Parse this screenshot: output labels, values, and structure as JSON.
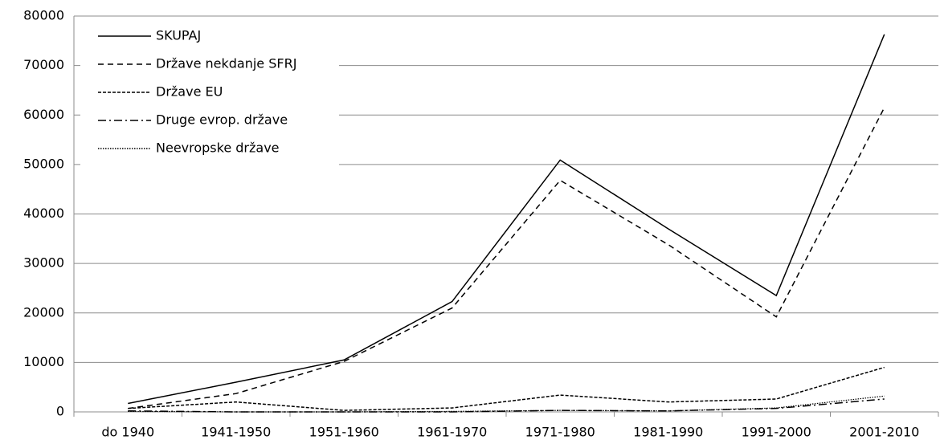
{
  "chart_data": {
    "type": "line",
    "categories": [
      "do 1940",
      "1941-1950",
      "1951-1960",
      "1961-1970",
      "1971-1980",
      "1981-1990",
      "1991-2000",
      "2001-2010"
    ],
    "series": [
      {
        "name": "SKUPAJ",
        "color": "#000000",
        "dash": "solid",
        "values": [
          1700,
          6000,
          10500,
          22300,
          50900,
          37000,
          23500,
          76300
        ]
      },
      {
        "name": "Države nekdanje  SFRJ",
        "color": "#000000",
        "dash": "dashed",
        "values": [
          700,
          3700,
          10200,
          21000,
          46800,
          33800,
          19200,
          61500
        ]
      },
      {
        "name": "Države EU",
        "color": "#000000",
        "dash": "short-dashed",
        "values": [
          700,
          2000,
          300,
          800,
          3400,
          2000,
          2600,
          9000
        ]
      },
      {
        "name": "Druge evrop. države",
        "color": "#000000",
        "dash": "dash-dot",
        "values": [
          200,
          0,
          0,
          0,
          300,
          200,
          700,
          2600
        ]
      },
      {
        "name": "Neevropske države",
        "color": "#000000",
        "dash": "dotted",
        "values": [
          100,
          0,
          0,
          100,
          300,
          200,
          800,
          3200
        ]
      }
    ],
    "ylim": [
      0,
      80000
    ],
    "yticks": [
      0,
      10000,
      20000,
      30000,
      40000,
      50000,
      60000,
      70000,
      80000
    ],
    "grid": true,
    "legend": "upper-left"
  }
}
